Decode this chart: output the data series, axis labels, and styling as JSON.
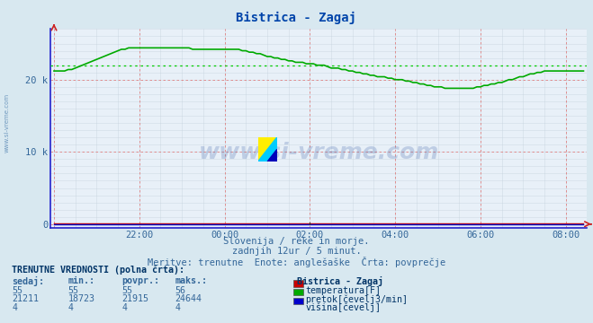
{
  "title": "Bistrica - Zagaj",
  "bg_color": "#d8e8f0",
  "plot_bg_color": "#e8f0f8",
  "x_labels": [
    "22:00",
    "00:00",
    "02:00",
    "04:00",
    "06:00",
    "08:00"
  ],
  "y_max": 27000,
  "subtitle1": "Slovenija / reke in morje.",
  "subtitle2": "zadnjih 12ur / 5 minut.",
  "subtitle3": "Meritve: trenutne  Enote: anglešaške  Črta: povprečje",
  "table_header": "TRENUTNE VREDNOSTI (polna črta):",
  "table_cols": [
    "sedaj:",
    "min.:",
    "povpr.:",
    "maks.:"
  ],
  "table_station": "Bistrica - Zagaj",
  "table_rows": [
    {
      "sedaj": "55",
      "min": "55",
      "povpr": "55",
      "maks": "56",
      "color": "#cc0000",
      "label": "temperatura[F]"
    },
    {
      "sedaj": "21211",
      "min": "18723",
      "povpr": "21915",
      "maks": "24644",
      "color": "#00aa00",
      "label": "pretok[čevelj3/min]"
    },
    {
      "sedaj": "4",
      "min": "4",
      "povpr": "4",
      "maks": "4",
      "color": "#0000cc",
      "label": "višina[čevelj]"
    }
  ],
  "flow_avg": 21915,
  "watermark": "www.si-vreme.com",
  "left_label": "www.si-vreme.com"
}
